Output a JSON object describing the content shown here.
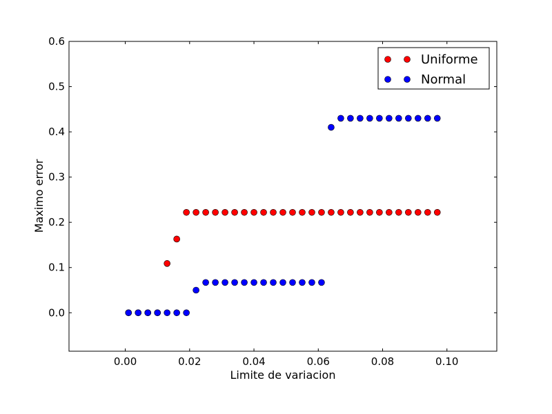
{
  "chart_data": {
    "type": "scatter",
    "xlabel": "Limite de variacion",
    "ylabel": "Maximo error",
    "xlim": [
      -0.0175,
      0.1155
    ],
    "ylim": [
      -0.085,
      0.6
    ],
    "xticks": [
      {
        "value": 0.0,
        "label": "0.00"
      },
      {
        "value": 0.02,
        "label": "0.02"
      },
      {
        "value": 0.04,
        "label": "0.04"
      },
      {
        "value": 0.06,
        "label": "0.06"
      },
      {
        "value": 0.08,
        "label": "0.08"
      },
      {
        "value": 0.1,
        "label": "0.10"
      }
    ],
    "yticks": [
      {
        "value": 0.0,
        "label": "0.0"
      },
      {
        "value": 0.1,
        "label": "0.1"
      },
      {
        "value": 0.2,
        "label": "0.2"
      },
      {
        "value": 0.3,
        "label": "0.3"
      },
      {
        "value": 0.4,
        "label": "0.4"
      },
      {
        "value": 0.5,
        "label": "0.5"
      },
      {
        "value": 0.6,
        "label": "0.6"
      }
    ],
    "grid": false,
    "legend_position": "top-right",
    "series": [
      {
        "name": "Uniforme",
        "color": "#ff0000",
        "x": [
          0.001,
          0.004,
          0.007,
          0.01,
          0.013,
          0.016,
          0.019,
          0.022,
          0.025,
          0.028,
          0.031,
          0.034,
          0.037,
          0.04,
          0.043,
          0.046,
          0.049,
          0.052,
          0.055,
          0.058,
          0.061,
          0.064,
          0.067,
          0.07,
          0.073,
          0.076,
          0.079,
          0.082,
          0.085,
          0.088,
          0.091,
          0.094,
          0.097
        ],
        "y": [
          0.0,
          0.0,
          0.0,
          0.0,
          0.109,
          0.163,
          0.222,
          0.222,
          0.222,
          0.222,
          0.222,
          0.222,
          0.222,
          0.222,
          0.222,
          0.222,
          0.222,
          0.222,
          0.222,
          0.222,
          0.222,
          0.222,
          0.222,
          0.222,
          0.222,
          0.222,
          0.222,
          0.222,
          0.222,
          0.222,
          0.222,
          0.222,
          0.222
        ]
      },
      {
        "name": "Normal",
        "color": "#0000ff",
        "x": [
          0.001,
          0.004,
          0.007,
          0.01,
          0.013,
          0.016,
          0.019,
          0.022,
          0.025,
          0.028,
          0.031,
          0.034,
          0.037,
          0.04,
          0.043,
          0.046,
          0.049,
          0.052,
          0.055,
          0.058,
          0.061,
          0.064,
          0.067,
          0.07,
          0.073,
          0.076,
          0.079,
          0.082,
          0.085,
          0.088,
          0.091,
          0.094,
          0.097
        ],
        "y": [
          0.0,
          0.0,
          0.0,
          0.0,
          0.0,
          0.0,
          0.0,
          0.05,
          0.067,
          0.067,
          0.067,
          0.067,
          0.067,
          0.067,
          0.067,
          0.067,
          0.067,
          0.067,
          0.067,
          0.067,
          0.067,
          0.41,
          0.43,
          0.43,
          0.43,
          0.43,
          0.43,
          0.43,
          0.43,
          0.43,
          0.43,
          0.43,
          0.43
        ]
      }
    ]
  }
}
